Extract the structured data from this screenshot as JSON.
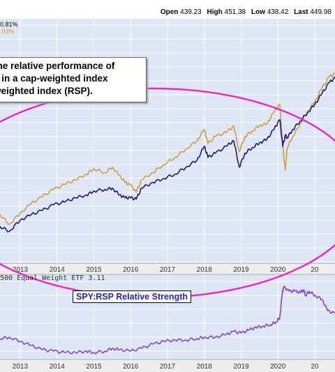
{
  "header": {
    "open_label": "Open",
    "open": "439.23",
    "high_label": "High",
    "high": "451.38",
    "low_label": "Low",
    "low": "438.42",
    "last_label": "Last",
    "last": "449.98"
  },
  "top_legend": {
    "line1": "0.81%",
    "line2": ".93%"
  },
  "callout": {
    "line1": "the relative performance of",
    "line2": "s in a cap-weighted index",
    "line3": "weighted index (RSP)."
  },
  "lower_panel": {
    "legend": "500 Equal Weight ETF 3.11",
    "label": "SPY:RSP Relative Strength"
  },
  "colors": {
    "background": "#dde6f5",
    "grid": "#ffffff",
    "spy_line": "#1a1a80",
    "rsp_line": "#d39b3e",
    "rs_line": "#8844cc",
    "ellipse": "#ee22cc"
  },
  "chart_data": [
    {
      "type": "line",
      "title": "",
      "xlabel": "",
      "ylabel": "",
      "x_tick_labels": [
        "2013",
        "2014",
        "2015",
        "2016",
        "2017",
        "2018",
        "2019",
        "2020",
        "20"
      ],
      "x_range": [
        2012.45,
        2021.55
      ],
      "grid": true,
      "series": [
        {
          "key": "gold",
          "x": [
            2012.45,
            2012.7,
            2013.0,
            2013.3,
            2013.6,
            2013.9,
            2014.2,
            2014.5,
            2014.8,
            2015.0,
            2015.3,
            2015.5,
            2015.7,
            2015.85,
            2016.0,
            2016.15,
            2016.3,
            2016.6,
            2016.9,
            2017.2,
            2017.5,
            2017.8,
            2018.0,
            2018.1,
            2018.3,
            2018.6,
            2018.8,
            2018.95,
            2019.1,
            2019.3,
            2019.5,
            2019.7,
            2019.9,
            2020.05,
            2020.13,
            2020.2,
            2020.25,
            2020.4,
            2020.6,
            2020.8,
            2021.0,
            2021.2,
            2021.4,
            2021.55
          ],
          "values": [
            308,
            322,
            306,
            292,
            282,
            272,
            265,
            258,
            250,
            242,
            248,
            240,
            252,
            262,
            266,
            276,
            258,
            248,
            236,
            226,
            214,
            202,
            186,
            206,
            196,
            190,
            181,
            218,
            196,
            188,
            180,
            178,
            160,
            150,
            210,
            244,
            212,
            196,
            178,
            160,
            146,
            126,
            110,
            106
          ]
        },
        {
          "key": "navy",
          "x": [
            2012.45,
            2012.7,
            2013.0,
            2013.3,
            2013.6,
            2013.9,
            2014.2,
            2014.5,
            2014.8,
            2015.0,
            2015.3,
            2015.5,
            2015.7,
            2015.85,
            2016.0,
            2016.15,
            2016.3,
            2016.6,
            2016.9,
            2017.2,
            2017.5,
            2017.8,
            2018.0,
            2018.1,
            2018.3,
            2018.6,
            2018.8,
            2018.95,
            2019.1,
            2019.3,
            2019.5,
            2019.7,
            2019.9,
            2020.05,
            2020.13,
            2020.2,
            2020.25,
            2020.4,
            2020.6,
            2020.8,
            2021.0,
            2021.2,
            2021.4,
            2021.55
          ],
          "values": [
            325,
            332,
            316,
            308,
            302,
            294,
            290,
            284,
            280,
            274,
            272,
            270,
            280,
            284,
            284,
            286,
            270,
            262,
            256,
            250,
            240,
            230,
            210,
            226,
            220,
            210,
            202,
            240,
            220,
            212,
            205,
            200,
            185,
            172,
            210,
            194,
            198,
            186,
            174,
            162,
            150,
            134,
            118,
            112
          ]
        },
        {
          "key": "purple",
          "x": [
            2012.45,
            2012.7,
            2013.0,
            2013.3,
            2013.6,
            2013.9,
            2014.2,
            2014.5,
            2014.8,
            2015.0,
            2015.3,
            2015.5,
            2015.7,
            2016.0,
            2016.3,
            2016.6,
            2016.9,
            2017.2,
            2017.5,
            2017.8,
            2018.0,
            2018.3,
            2018.6,
            2018.8,
            2019.0,
            2019.2,
            2019.4,
            2019.6,
            2019.8,
            2019.95,
            2020.05,
            2020.12,
            2020.16,
            2020.3,
            2020.45,
            2020.6,
            2020.7,
            2020.75,
            2020.85,
            2021.0,
            2021.2,
            2021.35,
            2021.55
          ],
          "values": [
            486,
            484,
            490,
            496,
            502,
            504,
            506,
            506,
            504,
            506,
            504,
            500,
            502,
            504,
            500,
            494,
            490,
            488,
            488,
            486,
            484,
            484,
            480,
            476,
            478,
            474,
            470,
            468,
            466,
            462,
            456,
            420,
            412,
            418,
            418,
            420,
            416,
            424,
            418,
            424,
            430,
            446,
            450
          ]
        }
      ]
    }
  ]
}
